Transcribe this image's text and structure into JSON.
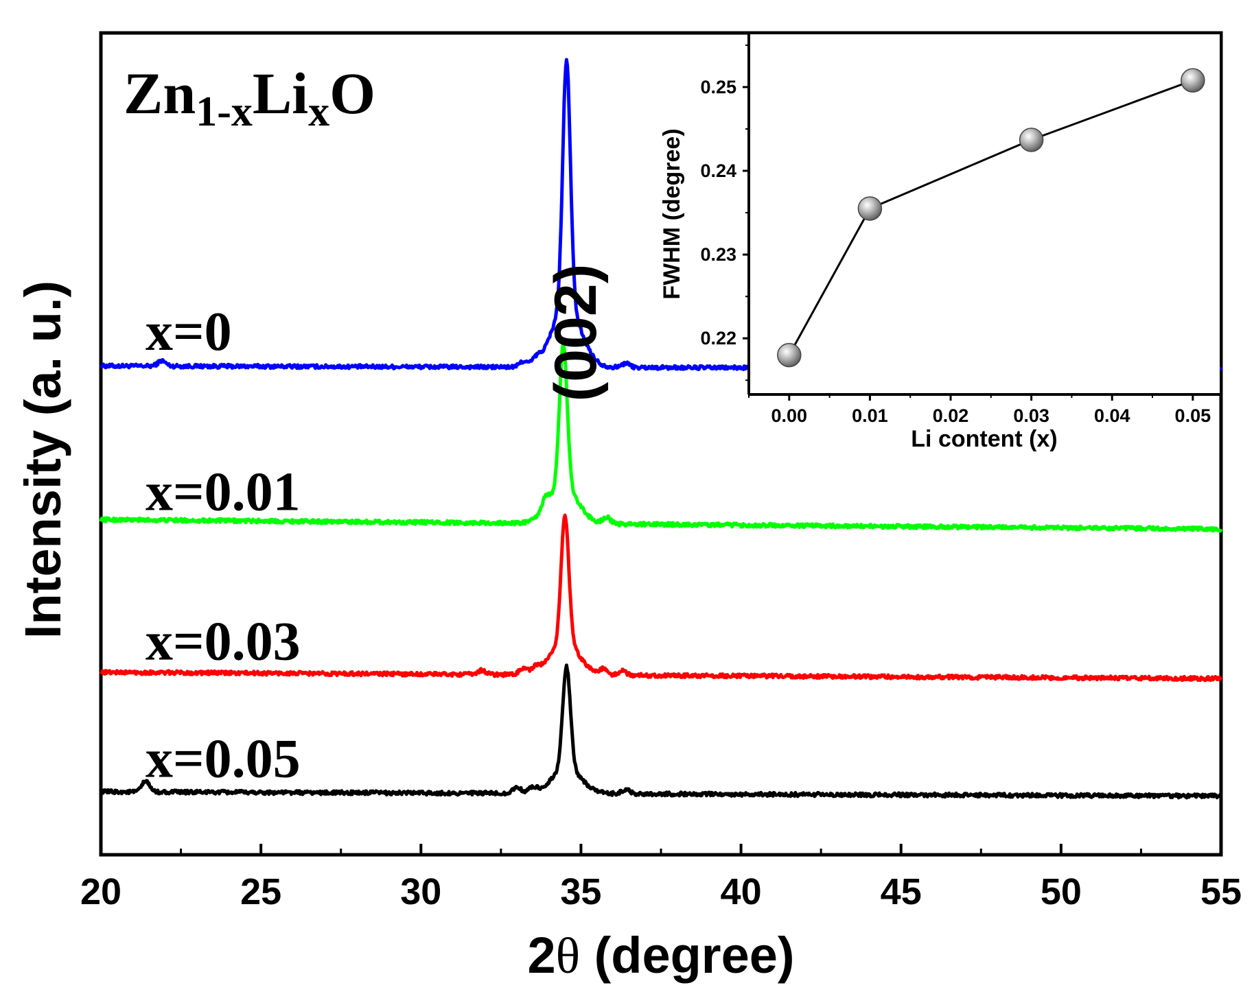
{
  "chart_data": [
    {
      "type": "line",
      "role": "main",
      "xlabel_prefix": "2",
      "xlabel_symbol": "θ",
      "xlabel_suffix": " (degree)",
      "ylabel": "Intensity (a. u.)",
      "xlim": [
        20,
        55
      ],
      "x_ticks": [
        "20",
        "25",
        "30",
        "35",
        "40",
        "45",
        "50",
        "55"
      ],
      "x_tick_values": [
        20,
        25,
        30,
        35,
        40,
        45,
        50,
        55
      ],
      "y_ticks_shown": false,
      "compound": {
        "a": "Zn",
        "b": "1-x",
        "c": "Li",
        "d": "x",
        "e": "O"
      },
      "peak_label": "(002)",
      "peak_position": 34.5,
      "series": [
        {
          "name": "x=0",
          "color": "#0000ff",
          "baseline": 0.75,
          "peak": 2.3,
          "peak_center": 34.55,
          "peak_width": 0.12,
          "tilt": 0.03,
          "minor_peaks": [
            [
              21.9,
              0.05
            ],
            [
              33.2,
              0.05
            ],
            [
              33.6,
              0.05
            ],
            [
              36.4,
              0.04
            ]
          ]
        },
        {
          "name": "x=0.01",
          "color": "#00ff00",
          "baseline": -0.75,
          "peak": 1.35,
          "peak_center": 34.45,
          "peak_width": 0.12,
          "tilt": 0.09,
          "minor_peaks": [
            [
              33.9,
              0.1
            ],
            [
              35.8,
              0.06
            ]
          ]
        },
        {
          "name": "x=0.03",
          "color": "#ff0000",
          "baseline": -2.15,
          "peak": 1.2,
          "peak_center": 34.5,
          "peak_width": 0.12,
          "tilt": 0.06,
          "minor_peaks": [
            [
              31.9,
              0.04
            ],
            [
              33.2,
              0.06
            ],
            [
              33.6,
              0.05
            ],
            [
              35.7,
              0.05
            ],
            [
              36.3,
              0.04
            ]
          ]
        },
        {
          "name": "x=0.05",
          "color": "#000000",
          "baseline": -3.25,
          "peak": 0.95,
          "peak_center": 34.55,
          "peak_width": 0.12,
          "tilt": 0.04,
          "minor_peaks": [
            [
              21.4,
              0.1
            ],
            [
              33.0,
              0.06
            ],
            [
              33.5,
              0.05
            ],
            [
              36.4,
              0.04
            ]
          ]
        }
      ],
      "ylim": [
        -3.8,
        3.9
      ]
    },
    {
      "type": "line",
      "role": "inset",
      "xlabel": "Li content (x)",
      "ylabel": "FWHM (degree)",
      "xlim": [
        -0.005,
        0.0535
      ],
      "ylim": [
        0.2133,
        0.2563
      ],
      "x": [
        0.0,
        0.01,
        0.03,
        0.05
      ],
      "y": [
        0.218,
        0.2355,
        0.2437,
        0.2508
      ],
      "x_ticks": [
        "0.00",
        "0.01",
        "0.02",
        "0.03",
        "0.04",
        "0.05"
      ],
      "x_tick_values": [
        0.0,
        0.01,
        0.02,
        0.03,
        0.04,
        0.05
      ],
      "y_ticks": [
        "0.22",
        "0.23",
        "0.24",
        "0.25"
      ],
      "y_tick_values": [
        0.22,
        0.23,
        0.24,
        0.25
      ],
      "marker_color": "#9a9a9a"
    }
  ]
}
